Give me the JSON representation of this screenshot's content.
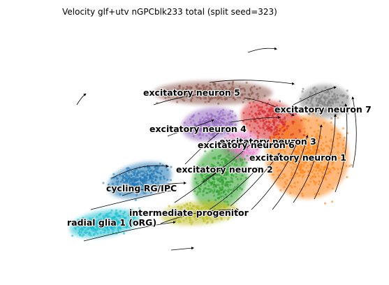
{
  "chart_data": {
    "type": "scatter",
    "title": "Velocity glf+utv nGPCblk233 total (split seed=323)",
    "xlabel": "",
    "ylabel": "",
    "axes_visible": false,
    "grid": false,
    "legend": "on data",
    "overlay": "velocity streamlines with arrowheads",
    "clusters": [
      {
        "name": "excitatory neuron 5",
        "color": "#8c564b"
      },
      {
        "name": "excitatory neuron 7",
        "color": "#7f7f7f"
      },
      {
        "name": "excitatory neuron 4",
        "color": "#9467bd"
      },
      {
        "name": "excitatory neuron 3",
        "color": "#d62728"
      },
      {
        "name": "excitatory neuron 6",
        "color": "#e377c2"
      },
      {
        "name": "excitatory neuron 1",
        "color": "#ff7f0e"
      },
      {
        "name": "excitatory neuron 2",
        "color": "#2ca02c"
      },
      {
        "name": "cycling RG/IPC",
        "color": "#1f77b4"
      },
      {
        "name": "intermediate progenitor",
        "color": "#bcbd22"
      },
      {
        "name": "radial glia 1 (oRG)",
        "color": "#17becf"
      }
    ]
  }
}
